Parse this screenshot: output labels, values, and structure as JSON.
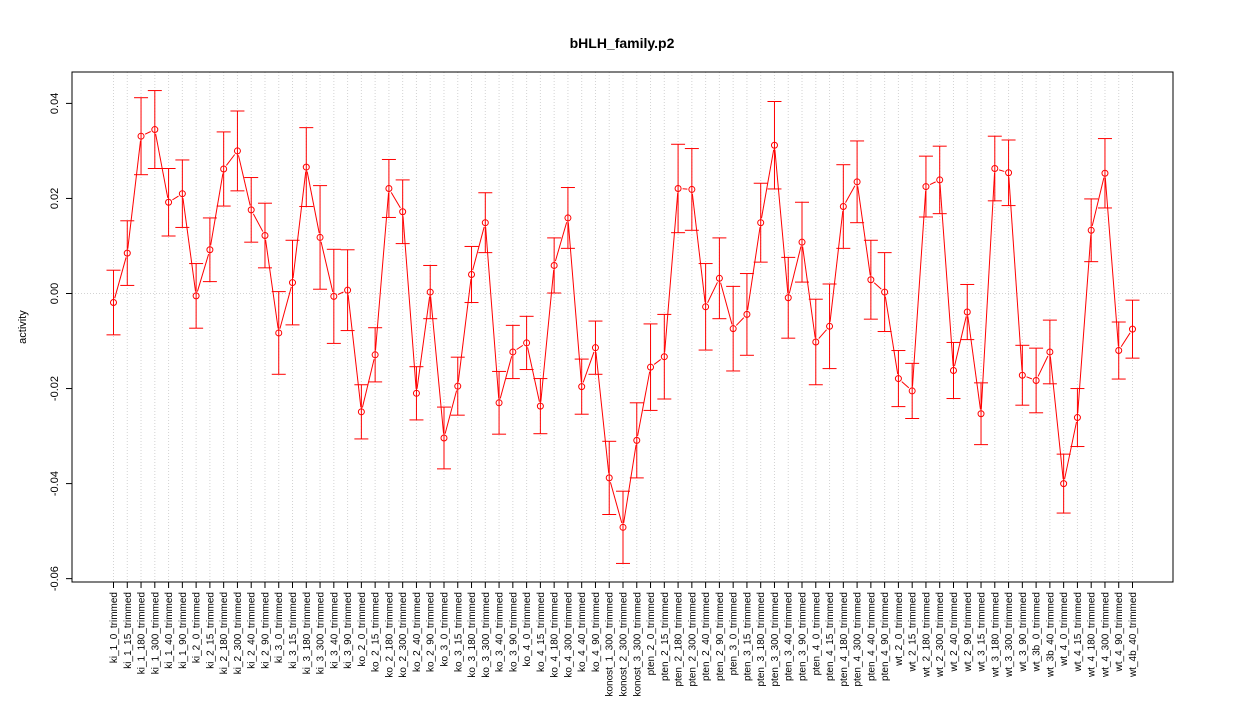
{
  "chart_data": {
    "type": "line",
    "title": "bHLH_family.p2",
    "xlabel": "",
    "ylabel": "activity",
    "ylim": [
      -0.0615,
      0.047
    ],
    "yticks": [
      -0.06,
      -0.04,
      -0.02,
      0.0,
      0.02,
      0.04
    ],
    "ytick_labels": [
      "-0.06",
      "-0.04",
      "-0.02",
      "0.00",
      "0.02",
      "0.04"
    ],
    "grid": true,
    "series_color": "#ff0000",
    "categories": [
      "ki_1_0_trimmed",
      "ki_1_15_trimmed",
      "ki_1_180_trimmed",
      "ki_1_300_trimmed",
      "ki_1_40_trimmed",
      "ki_1_90_trimmed",
      "ki_2_0_trimmed",
      "ki_2_15_trimmed",
      "ki_2_180_trimmed",
      "ki_2_300_trimmed",
      "ki_2_40_trimmed",
      "ki_2_90_trimmed",
      "ki_3_0_trimmed",
      "ki_3_15_trimmed",
      "ki_3_180_trimmed",
      "ki_3_300_trimmed",
      "ki_3_40_trimmed",
      "ki_3_90_trimmed",
      "ko_2_0_trimmed",
      "ko_2_15_trimmed",
      "ko_2_180_trimmed",
      "ko_2_300_trimmed",
      "ko_2_40_trimmed",
      "ko_2_90_trimmed",
      "ko_3_0_trimmed",
      "ko_3_15_trimmed",
      "ko_3_180_trimmed",
      "ko_3_300_trimmed",
      "ko_3_40_trimmed",
      "ko_3_90_trimmed",
      "ko_4_0_trimmed",
      "ko_4_15_trimmed",
      "ko_4_180_trimmed",
      "ko_4_300_trimmed",
      "ko_4_40_trimmed",
      "ko_4_90_trimmed",
      "konost_1_300_trimmed",
      "konost_2_300_trimmed",
      "konost_3_300_trimmed",
      "pten_2_0_trimmed",
      "pten_2_15_trimmed",
      "pten_2_180_trimmed",
      "pten_2_300_trimmed",
      "pten_2_40_trimmed",
      "pten_2_90_trimmed",
      "pten_3_0_trimmed",
      "pten_3_15_trimmed",
      "pten_3_180_trimmed",
      "pten_3_300_trimmed",
      "pten_3_40_trimmed",
      "pten_3_90_trimmed",
      "pten_4_0_trimmed",
      "pten_4_15_trimmed",
      "pten_4_180_trimmed",
      "pten_4_300_trimmed",
      "pten_4_40_trimmed",
      "pten_4_90_trimmed",
      "wt_2_0_trimmed",
      "wt_2_15_trimmed",
      "wt_2_180_trimmed",
      "wt_2_300_trimmed",
      "wt_2_40_trimmed",
      "wt_2_90_trimmed",
      "wt_3_15_trimmed",
      "wt_3_180_trimmed",
      "wt_3_300_trimmed",
      "wt_3_90_trimmed",
      "wt_3b_0_trimmed",
      "wt_3b_40_trimmed",
      "wt_4_0_trimmed",
      "wt_4_15_trimmed",
      "wt_4_180_trimmed",
      "wt_4_300_trimmed",
      "wt_4_90_trimmed",
      "wt_4b_40_trimmed"
    ],
    "values": [
      -0.0019,
      0.0085,
      0.0331,
      0.0345,
      0.0192,
      0.021,
      -0.0005,
      0.0092,
      0.0262,
      0.03,
      0.0176,
      0.0122,
      -0.0083,
      0.0023,
      0.0266,
      0.0118,
      -0.0006,
      0.0007,
      -0.0249,
      -0.0129,
      0.0221,
      0.0172,
      -0.021,
      0.0003,
      -0.0304,
      -0.0195,
      0.004,
      0.0149,
      -0.023,
      -0.0123,
      -0.0104,
      -0.0237,
      0.0059,
      0.0159,
      -0.0196,
      -0.0114,
      -0.0388,
      -0.0492,
      -0.0309,
      -0.0155,
      -0.0133,
      0.0221,
      0.0219,
      -0.0028,
      0.0032,
      -0.0074,
      -0.0044,
      0.0149,
      0.0312,
      -0.0009,
      0.0108,
      -0.0102,
      -0.0069,
      0.0183,
      0.0235,
      0.0029,
      0.0003,
      -0.0179,
      -0.0205,
      0.0225,
      0.0239,
      -0.0162,
      -0.0039,
      -0.0253,
      0.0263,
      0.0254,
      -0.0172,
      -0.0183,
      -0.0123,
      -0.04,
      -0.0261,
      0.0133,
      0.0253,
      -0.012,
      -0.0075
    ],
    "error": [
      0.0068,
      0.0068,
      0.0081,
      0.0082,
      0.0071,
      0.0071,
      0.0068,
      0.0067,
      0.0078,
      0.0084,
      0.0068,
      0.0068,
      0.0087,
      0.0089,
      0.0083,
      0.0109,
      0.0099,
      0.0085,
      0.0057,
      0.0057,
      0.0061,
      0.0067,
      0.0056,
      0.0056,
      0.0065,
      0.0061,
      0.0059,
      0.0063,
      0.0066,
      0.0056,
      0.0056,
      0.0058,
      0.0058,
      0.0064,
      0.0058,
      0.0056,
      0.0077,
      0.0076,
      0.0079,
      0.0091,
      0.0089,
      0.0093,
      0.0086,
      0.0091,
      0.0085,
      0.0089,
      0.0086,
      0.0083,
      0.0092,
      0.0085,
      0.0084,
      0.009,
      0.0089,
      0.0088,
      0.0086,
      0.0083,
      0.0083,
      0.0059,
      0.0058,
      0.0064,
      0.0071,
      0.0059,
      0.0058,
      0.0065,
      0.0068,
      0.0069,
      0.0063,
      0.0068,
      0.0067,
      0.0062,
      0.0061,
      0.0066,
      0.0073,
      0.006,
      0.0061
    ]
  }
}
